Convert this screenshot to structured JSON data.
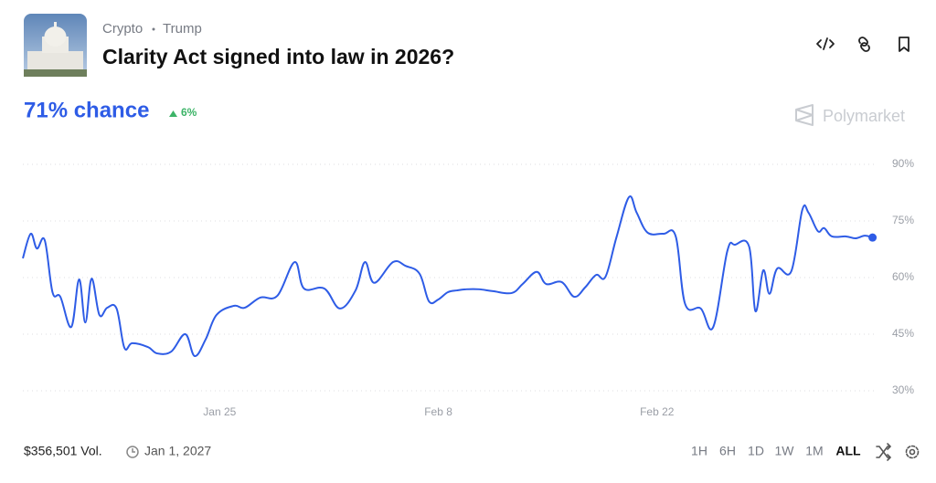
{
  "tags": [
    "Crypto",
    "Trump"
  ],
  "title": "Clarity Act signed into law in 2026?",
  "chance_label": "71% chance",
  "change": "6%",
  "brand": "Polymarket",
  "volume": "$356,501 Vol.",
  "end_date": "Jan 1, 2027",
  "timeframes": [
    "1H",
    "6H",
    "1D",
    "1W",
    "1M",
    "ALL"
  ],
  "chart_data": {
    "type": "line",
    "color": "#2e5ce6",
    "x": [
      12.4,
      12.9,
      13.3,
      13.8,
      14.3,
      14.8,
      15.5,
      16.0,
      16.4,
      16.8,
      17.3,
      17.8,
      18.4,
      18.9,
      19.4,
      20.4,
      21.0,
      21.9,
      22.8,
      23.4,
      24.1,
      24.8,
      25.9,
      26.6,
      27.6,
      28.7,
      29.8,
      30.4,
      31.7,
      32.7,
      33.7,
      34.3,
      34.9,
      36.1,
      36.9,
      37.8,
      38.4,
      39.0,
      39.6,
      40.2,
      40.8,
      41.6,
      42.5,
      43.7,
      44.4,
      45.3,
      45.9,
      46.9,
      47.7,
      48.4,
      49.1,
      49.7,
      50.4,
      51.2,
      51.7,
      52.4,
      53.4,
      54.2,
      54.8,
      55.8,
      56.6,
      57.5,
      58.0,
      58.9,
      59.3,
      59.8,
      60.2,
      60.7,
      61.6,
      62.3,
      62.7,
      63.3,
      63.7,
      64.2,
      65.1,
      65.7,
      66.3,
      66.8
    ],
    "values": [
      65.1,
      71.6,
      67.7,
      69.9,
      56.1,
      54.9,
      46.9,
      59.5,
      48.1,
      59.7,
      50.1,
      52.0,
      51.8,
      41.4,
      42.6,
      41.6,
      39.9,
      40.4,
      45.0,
      39.2,
      43.6,
      50.1,
      52.5,
      52.0,
      54.7,
      55.2,
      64.1,
      57.1,
      57.1,
      51.8,
      56.6,
      64.1,
      58.6,
      64.1,
      63.1,
      61.0,
      53.7,
      54.2,
      56.1,
      56.6,
      56.9,
      56.9,
      56.4,
      55.9,
      58.3,
      61.5,
      58.3,
      58.8,
      54.9,
      57.4,
      60.7,
      60.2,
      70.6,
      81.3,
      77.2,
      71.9,
      71.6,
      70.9,
      53.0,
      51.8,
      46.9,
      67.0,
      68.7,
      68.2,
      51.1,
      61.9,
      55.7,
      62.4,
      61.7,
      77.9,
      77.2,
      72.3,
      73.1,
      70.9,
      70.9,
      70.4,
      71.1,
      70.6
    ],
    "xlim": [
      12.4,
      67.0
    ],
    "ylim": [
      30,
      90
    ],
    "xticks": [
      {
        "value": 25,
        "label": "Jan 25"
      },
      {
        "value": 39,
        "label": "Feb 8"
      },
      {
        "value": 53,
        "label": "Feb 22"
      }
    ],
    "yticks": [
      {
        "value": 30,
        "label": "30%"
      },
      {
        "value": 45,
        "label": "45%"
      },
      {
        "value": 60,
        "label": "60%"
      },
      {
        "value": 75,
        "label": "75%"
      },
      {
        "value": 90,
        "label": "90%"
      }
    ],
    "grid": true
  }
}
